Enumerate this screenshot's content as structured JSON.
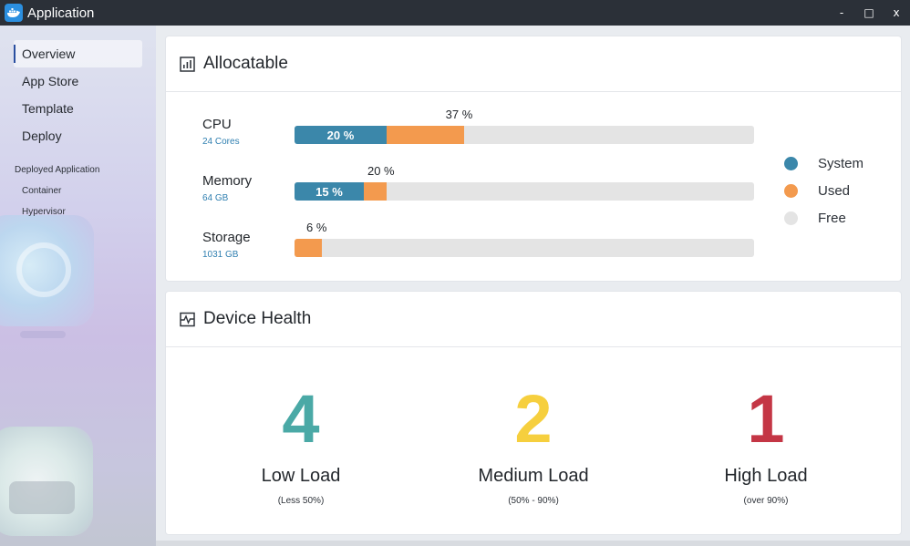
{
  "window": {
    "title": "Application",
    "controls": {
      "minimize": "-",
      "maximize": "□",
      "close": "x"
    }
  },
  "sidebar": {
    "items": [
      {
        "label": "Overview",
        "active": true
      },
      {
        "label": "App Store"
      },
      {
        "label": "Template"
      },
      {
        "label": "Deploy"
      }
    ],
    "section_title": "Deployed Application",
    "sub_items": [
      {
        "label": "Container"
      },
      {
        "label": "Hypervisor"
      }
    ]
  },
  "allocatable": {
    "title": "Allocatable",
    "icon": "bar-chart-icon",
    "resources": [
      {
        "name": "CPU",
        "detail": "24 Cores",
        "system_pct": 20,
        "system_label": "20 %",
        "total_pct": 37,
        "total_label": "37 %"
      },
      {
        "name": "Memory",
        "detail": "64 GB",
        "system_pct": 15,
        "system_label": "15 %",
        "total_pct": 20,
        "total_label": "20 %"
      },
      {
        "name": "Storage",
        "detail": "1031 GB",
        "system_pct": 0,
        "system_label": "",
        "total_pct": 6,
        "total_label": "6 %"
      }
    ],
    "legend": [
      {
        "label": "System",
        "color": "#3b87aa"
      },
      {
        "label": "Used",
        "color": "#f39a4e"
      },
      {
        "label": "Free",
        "color": "#e4e4e4"
      }
    ]
  },
  "device_health": {
    "title": "Device Health",
    "icon": "pulse-icon",
    "stats": [
      {
        "count": "4",
        "label": "Low Load",
        "range": "(Less 50%)",
        "color": "#4aa9a6"
      },
      {
        "count": "2",
        "label": "Medium Load",
        "range": "(50% - 90%)",
        "color": "#f6cf3e"
      },
      {
        "count": "1",
        "label": "High Load",
        "range": "(over 90%)",
        "color": "#c43645"
      }
    ]
  }
}
